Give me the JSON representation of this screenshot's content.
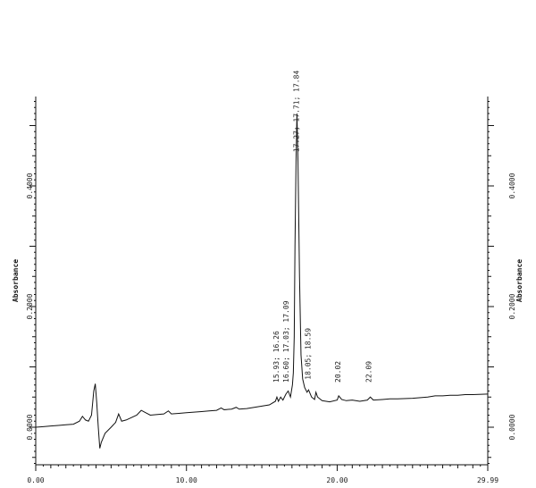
{
  "chart_data": {
    "type": "line",
    "title": "",
    "xlabel": "",
    "ylabel": "Absorbance",
    "ylabel_right": "Absorbance",
    "xlim": [
      0.0,
      29.99
    ],
    "ylim": [
      -0.06,
      0.54
    ],
    "x_ticks": [
      "0.00",
      "10.00",
      "20.00",
      "29.99"
    ],
    "y_ticks": [
      "0.0000",
      "0.2000",
      "0.4000"
    ],
    "y_ticks_right": [
      "0.0000",
      "0.2000",
      "0.4000"
    ],
    "grid": false,
    "legend": "none",
    "series": [
      {
        "points": [
          [
            0.0,
            0.0
          ],
          [
            0.5,
            0.001
          ],
          [
            1.0,
            0.002
          ],
          [
            1.5,
            0.003
          ],
          [
            2.0,
            0.004
          ],
          [
            2.5,
            0.005
          ],
          [
            2.9,
            0.01
          ],
          [
            3.1,
            0.018
          ],
          [
            3.3,
            0.012
          ],
          [
            3.5,
            0.01
          ],
          [
            3.7,
            0.02
          ],
          [
            3.85,
            0.06
          ],
          [
            3.95,
            0.072
          ],
          [
            4.05,
            0.04
          ],
          [
            4.15,
            0.0
          ],
          [
            4.25,
            -0.035
          ],
          [
            4.35,
            -0.025
          ],
          [
            4.6,
            -0.01
          ],
          [
            5.0,
            0.0
          ],
          [
            5.3,
            0.008
          ],
          [
            5.5,
            0.022
          ],
          [
            5.7,
            0.01
          ],
          [
            6.0,
            0.012
          ],
          [
            6.7,
            0.02
          ],
          [
            7.0,
            0.028
          ],
          [
            7.3,
            0.024
          ],
          [
            7.6,
            0.02
          ],
          [
            8.0,
            0.021
          ],
          [
            8.5,
            0.022
          ],
          [
            8.8,
            0.027
          ],
          [
            9.0,
            0.022
          ],
          [
            9.5,
            0.023
          ],
          [
            10.0,
            0.024
          ],
          [
            10.5,
            0.025
          ],
          [
            11.0,
            0.026
          ],
          [
            11.5,
            0.027
          ],
          [
            12.0,
            0.028
          ],
          [
            12.3,
            0.032
          ],
          [
            12.5,
            0.029
          ],
          [
            13.0,
            0.03
          ],
          [
            13.3,
            0.033
          ],
          [
            13.5,
            0.03
          ],
          [
            14.0,
            0.031
          ],
          [
            14.5,
            0.033
          ],
          [
            15.0,
            0.035
          ],
          [
            15.5,
            0.037
          ],
          [
            15.9,
            0.043
          ],
          [
            16.0,
            0.05
          ],
          [
            16.1,
            0.043
          ],
          [
            16.25,
            0.05
          ],
          [
            16.4,
            0.045
          ],
          [
            16.6,
            0.055
          ],
          [
            16.75,
            0.06
          ],
          [
            16.9,
            0.05
          ],
          [
            17.03,
            0.07
          ],
          [
            17.09,
            0.09
          ],
          [
            17.15,
            0.15
          ],
          [
            17.2,
            0.3
          ],
          [
            17.27,
            0.44
          ],
          [
            17.33,
            0.52
          ],
          [
            17.4,
            0.44
          ],
          [
            17.5,
            0.25
          ],
          [
            17.6,
            0.12
          ],
          [
            17.71,
            0.08
          ],
          [
            17.84,
            0.066
          ],
          [
            18.0,
            0.058
          ],
          [
            18.1,
            0.062
          ],
          [
            18.3,
            0.05
          ],
          [
            18.5,
            0.046
          ],
          [
            18.59,
            0.058
          ],
          [
            18.7,
            0.05
          ],
          [
            19.0,
            0.044
          ],
          [
            19.5,
            0.042
          ],
          [
            20.0,
            0.045
          ],
          [
            20.1,
            0.052
          ],
          [
            20.3,
            0.046
          ],
          [
            20.6,
            0.044
          ],
          [
            21.0,
            0.045
          ],
          [
            21.5,
            0.043
          ],
          [
            22.0,
            0.045
          ],
          [
            22.2,
            0.05
          ],
          [
            22.4,
            0.045
          ],
          [
            23.0,
            0.046
          ],
          [
            23.5,
            0.047
          ],
          [
            24.0,
            0.047
          ],
          [
            25.0,
            0.048
          ],
          [
            26.0,
            0.05
          ],
          [
            26.5,
            0.052
          ],
          [
            27.0,
            0.052
          ],
          [
            27.5,
            0.053
          ],
          [
            28.0,
            0.053
          ],
          [
            28.5,
            0.054
          ],
          [
            29.0,
            0.054
          ],
          [
            29.99,
            0.055
          ]
        ]
      }
    ],
    "annotations": [
      {
        "text": "17.27; 17.71; 17.84",
        "x": 17.27
      },
      {
        "text": "15.93; 16.26",
        "x": 15.93
      },
      {
        "text": "16.60; 17.03; 17.09",
        "x": 16.6
      },
      {
        "text": "18.05; 18.59",
        "x": 18.05
      },
      {
        "text": "20.02",
        "x": 20.02
      },
      {
        "text": "22.09",
        "x": 22.09
      }
    ]
  }
}
